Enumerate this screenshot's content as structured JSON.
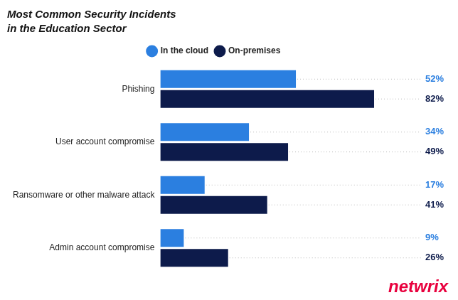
{
  "chart_data": {
    "type": "bar",
    "orientation": "horizontal",
    "title": "Most Common Security Incidents",
    "subtitle": "in the Education Sector",
    "categories": [
      "Phishing",
      "User account compromise",
      "Ransomware or other malware attack",
      "Admin account compromise"
    ],
    "series": [
      {
        "name": "In the cloud",
        "color": "#2b7fe0",
        "values": [
          52,
          34,
          17,
          9
        ],
        "value_labels": [
          "52%",
          "34%",
          "17%",
          "9%"
        ]
      },
      {
        "name": "On-premises",
        "color": "#0d1b4b",
        "values": [
          82,
          49,
          41,
          26
        ],
        "value_labels": [
          "82%",
          "49%",
          "41%",
          "26%"
        ]
      }
    ],
    "xlim": [
      0,
      100
    ],
    "grid": false,
    "legend": "top",
    "data_labels": true,
    "tick_labels": "y",
    "annotations": [
      {
        "text": "netwrix",
        "color": "#e8003d"
      }
    ]
  }
}
